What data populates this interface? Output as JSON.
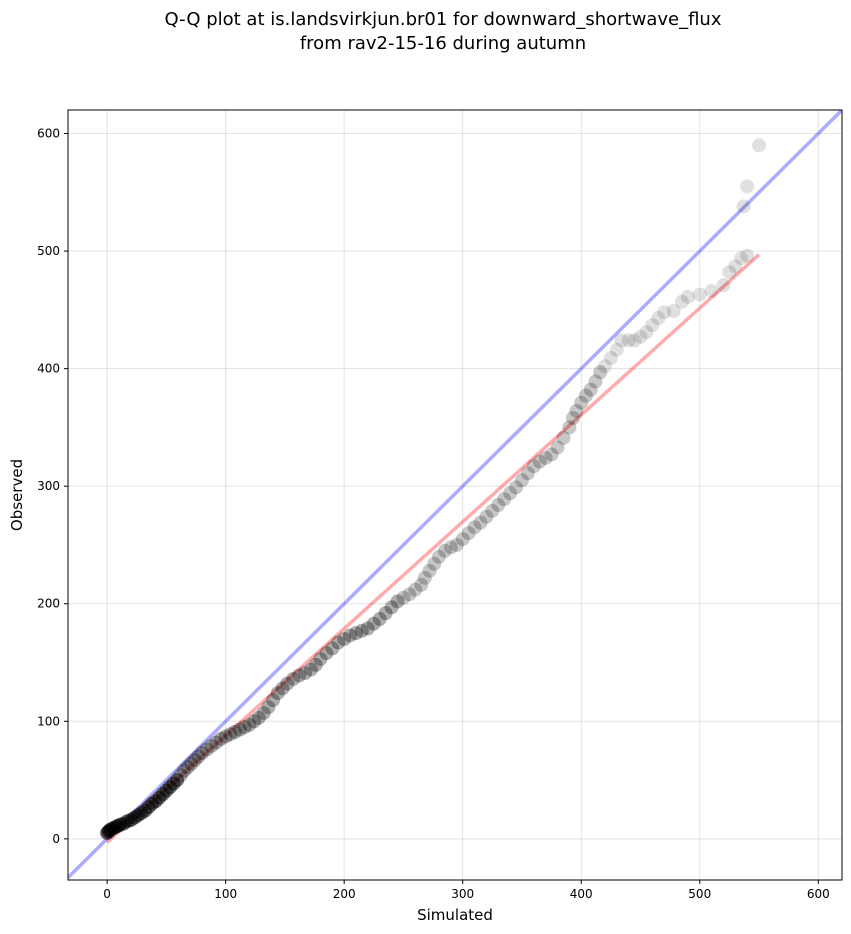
{
  "chart_data": {
    "type": "scatter",
    "title": [
      "Q-Q plot at is.landsvirkjun.br01 for downward_shortwave_flux",
      "from rav2-15-16 during autumn"
    ],
    "xlabel": "Simulated",
    "ylabel": "Observed",
    "xlim": [
      -33,
      620
    ],
    "ylim": [
      -35,
      620
    ],
    "xticks": [
      0,
      100,
      200,
      300,
      400,
      500,
      600
    ],
    "yticks": [
      0,
      100,
      200,
      300,
      400,
      500,
      600
    ],
    "grid": true,
    "reference_line": {
      "label": "1:1 line",
      "color": "#0000ff",
      "alpha": 0.33,
      "points": [
        [
          -33,
          -33
        ],
        [
          620,
          620
        ]
      ]
    },
    "fit_line": {
      "color": "#ff0000",
      "alpha": 0.33,
      "points": [
        [
          0,
          -3
        ],
        [
          550,
          497
        ]
      ]
    },
    "points": [
      [
        0,
        5
      ],
      [
        1,
        6
      ],
      [
        2,
        7
      ],
      [
        3,
        8
      ],
      [
        5,
        9
      ],
      [
        7,
        10
      ],
      [
        9,
        11
      ],
      [
        11,
        12
      ],
      [
        14,
        13
      ],
      [
        17,
        15
      ],
      [
        20,
        16
      ],
      [
        23,
        18
      ],
      [
        26,
        20
      ],
      [
        29,
        22
      ],
      [
        32,
        24
      ],
      [
        35,
        27
      ],
      [
        38,
        30
      ],
      [
        41,
        32
      ],
      [
        44,
        35
      ],
      [
        47,
        38
      ],
      [
        50,
        41
      ],
      [
        53,
        44
      ],
      [
        56,
        47
      ],
      [
        59,
        50
      ],
      [
        62,
        54
      ],
      [
        65,
        58
      ],
      [
        68,
        61
      ],
      [
        71,
        64
      ],
      [
        74,
        67
      ],
      [
        77,
        70
      ],
      [
        80,
        73
      ],
      [
        84,
        76
      ],
      [
        88,
        79
      ],
      [
        92,
        82
      ],
      [
        96,
        85
      ],
      [
        100,
        87
      ],
      [
        104,
        89
      ],
      [
        108,
        91
      ],
      [
        112,
        93
      ],
      [
        116,
        95
      ],
      [
        120,
        97
      ],
      [
        124,
        100
      ],
      [
        128,
        103
      ],
      [
        132,
        107
      ],
      [
        136,
        112
      ],
      [
        140,
        118
      ],
      [
        144,
        124
      ],
      [
        148,
        128
      ],
      [
        152,
        132
      ],
      [
        157,
        136
      ],
      [
        162,
        139
      ],
      [
        167,
        141
      ],
      [
        172,
        144
      ],
      [
        176,
        148
      ],
      [
        180,
        153
      ],
      [
        185,
        158
      ],
      [
        190,
        162
      ],
      [
        195,
        167
      ],
      [
        200,
        170
      ],
      [
        205,
        173
      ],
      [
        210,
        175
      ],
      [
        215,
        177
      ],
      [
        220,
        179
      ],
      [
        225,
        183
      ],
      [
        230,
        187
      ],
      [
        235,
        192
      ],
      [
        240,
        197
      ],
      [
        245,
        202
      ],
      [
        250,
        205
      ],
      [
        255,
        208
      ],
      [
        260,
        212
      ],
      [
        265,
        216
      ],
      [
        268,
        222
      ],
      [
        272,
        228
      ],
      [
        276,
        234
      ],
      [
        280,
        240
      ],
      [
        285,
        245
      ],
      [
        290,
        248
      ],
      [
        295,
        250
      ],
      [
        300,
        255
      ],
      [
        305,
        260
      ],
      [
        310,
        265
      ],
      [
        315,
        269
      ],
      [
        320,
        274
      ],
      [
        325,
        279
      ],
      [
        330,
        284
      ],
      [
        335,
        289
      ],
      [
        340,
        294
      ],
      [
        345,
        299
      ],
      [
        350,
        305
      ],
      [
        355,
        311
      ],
      [
        360,
        317
      ],
      [
        365,
        321
      ],
      [
        370,
        324
      ],
      [
        375,
        327
      ],
      [
        380,
        333
      ],
      [
        385,
        341
      ],
      [
        390,
        350
      ],
      [
        393,
        358
      ],
      [
        396,
        364
      ],
      [
        400,
        371
      ],
      [
        404,
        377
      ],
      [
        408,
        382
      ],
      [
        412,
        389
      ],
      [
        416,
        397
      ],
      [
        420,
        402
      ],
      [
        425,
        409
      ],
      [
        430,
        416
      ],
      [
        434,
        424
      ],
      [
        440,
        424
      ],
      [
        445,
        424
      ],
      [
        450,
        427
      ],
      [
        455,
        431
      ],
      [
        460,
        437
      ],
      [
        465,
        443
      ],
      [
        470,
        448
      ],
      [
        478,
        449
      ],
      [
        485,
        457
      ],
      [
        490,
        461
      ],
      [
        500,
        463
      ],
      [
        510,
        466
      ],
      [
        520,
        471
      ],
      [
        525,
        482
      ],
      [
        530,
        487
      ],
      [
        535,
        494
      ],
      [
        540,
        496
      ],
      [
        537,
        538
      ],
      [
        540,
        555
      ],
      [
        550,
        590
      ]
    ]
  }
}
